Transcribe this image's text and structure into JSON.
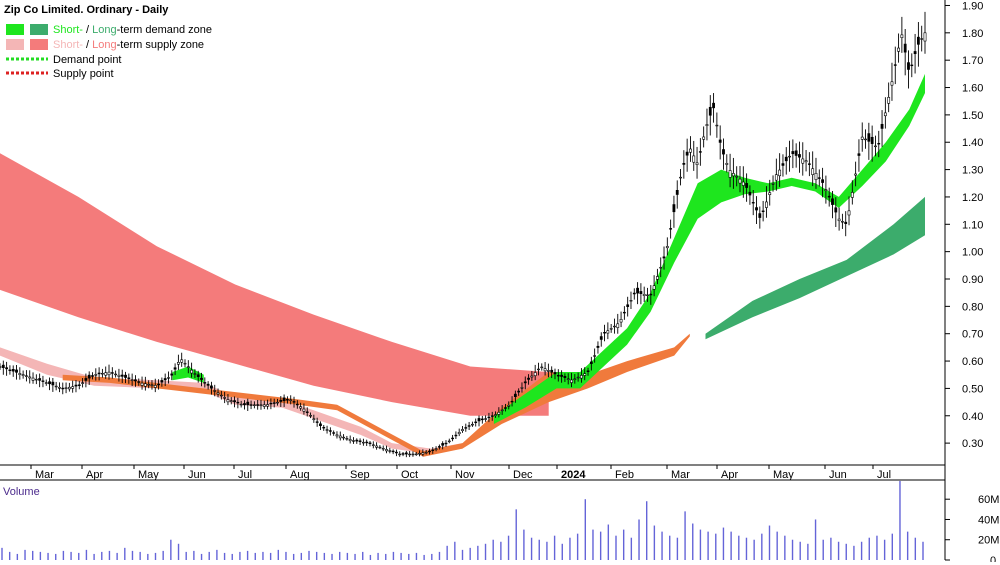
{
  "chart_data": {
    "type": "line",
    "title": "Zip Co Limited. Ordinary - Daily",
    "legend": {
      "placement": "top-left",
      "entries": [
        {
          "key": "demand-zone",
          "pre": "Short-",
          "mid": " / ",
          "post": "Long",
          "tail": "-term demand zone",
          "colors": [
            "#1ee61e",
            "#3cac6c"
          ]
        },
        {
          "key": "supply-zone",
          "pre": "Short-",
          "mid": " / ",
          "post": "Long",
          "tail": "-term supply zone",
          "colors": [
            "#f4b6b6",
            "#f47b7b"
          ]
        },
        {
          "key": "demand-point",
          "label": "Demand point",
          "color": "#22dd22"
        },
        {
          "key": "supply-point",
          "label": "Supply point",
          "color": "#dd2222"
        }
      ]
    },
    "x_labels": [
      "Mar",
      "Apr",
      "May",
      "Jun",
      "Jul",
      "Aug",
      "Sep",
      "Oct",
      "Nov",
      "Dec",
      "2024",
      "Feb",
      "Mar",
      "Apr",
      "May",
      "Jun",
      "Jul"
    ],
    "y_ticks": [
      "1.90",
      "1.80",
      "1.70",
      "1.60",
      "1.50",
      "1.40",
      "1.30",
      "1.20",
      "1.10",
      "1.00",
      "0.90",
      "0.80",
      "0.70",
      "0.60",
      "0.50",
      "0.40",
      "0.30"
    ],
    "ylim": [
      0.22,
      1.92
    ],
    "x_index_range": [
      0,
      118
    ],
    "price_points": [
      [
        0,
        0.58
      ],
      [
        3,
        0.55
      ],
      [
        6,
        0.52
      ],
      [
        8,
        0.5
      ],
      [
        10,
        0.51
      ],
      [
        12,
        0.55
      ],
      [
        14,
        0.56
      ],
      [
        16,
        0.54
      ],
      [
        18,
        0.52
      ],
      [
        20,
        0.51
      ],
      [
        22,
        0.55
      ],
      [
        23,
        0.61
      ],
      [
        25,
        0.55
      ],
      [
        27,
        0.5
      ],
      [
        29,
        0.46
      ],
      [
        31,
        0.44
      ],
      [
        34,
        0.44
      ],
      [
        37,
        0.46
      ],
      [
        39,
        0.42
      ],
      [
        41,
        0.36
      ],
      [
        43,
        0.33
      ],
      [
        45,
        0.31
      ],
      [
        47,
        0.3
      ],
      [
        49,
        0.28
      ],
      [
        51,
        0.26
      ],
      [
        53,
        0.26
      ],
      [
        55,
        0.27
      ],
      [
        57,
        0.3
      ],
      [
        59,
        0.35
      ],
      [
        61,
        0.38
      ],
      [
        63,
        0.4
      ],
      [
        65,
        0.44
      ],
      [
        67,
        0.52
      ],
      [
        69,
        0.58
      ],
      [
        71,
        0.55
      ],
      [
        73,
        0.53
      ],
      [
        75,
        0.56
      ],
      [
        77,
        0.7
      ],
      [
        79,
        0.74
      ],
      [
        81,
        0.85
      ],
      [
        83,
        0.84
      ],
      [
        85,
        1.0
      ],
      [
        87,
        1.3
      ],
      [
        88,
        1.38
      ],
      [
        89,
        1.32
      ],
      [
        90,
        1.45
      ],
      [
        91,
        1.53
      ],
      [
        92,
        1.38
      ],
      [
        93,
        1.3
      ],
      [
        95,
        1.25
      ],
      [
        97,
        1.12
      ],
      [
        99,
        1.28
      ],
      [
        101,
        1.36
      ],
      [
        103,
        1.33
      ],
      [
        105,
        1.25
      ],
      [
        107,
        1.12
      ],
      [
        108,
        1.1
      ],
      [
        110,
        1.42
      ],
      [
        112,
        1.38
      ],
      [
        114,
        1.65
      ],
      [
        115,
        1.8
      ],
      [
        116,
        1.65
      ],
      [
        117,
        1.75
      ],
      [
        118,
        1.8
      ]
    ],
    "zones": {
      "long_supply": {
        "color": "#f47b7b",
        "upper": [
          [
            0,
            1.36
          ],
          [
            10,
            1.2
          ],
          [
            20,
            1.02
          ],
          [
            30,
            0.88
          ],
          [
            40,
            0.77
          ],
          [
            50,
            0.67
          ],
          [
            60,
            0.58
          ],
          [
            70,
            0.56
          ]
        ],
        "lower": [
          [
            0,
            0.86
          ],
          [
            10,
            0.76
          ],
          [
            20,
            0.67
          ],
          [
            30,
            0.59
          ],
          [
            40,
            0.51
          ],
          [
            50,
            0.45
          ],
          [
            60,
            0.4
          ],
          [
            70,
            0.4
          ]
        ]
      },
      "short_supply": {
        "color": "#f4b6b6",
        "upper": [
          [
            0,
            0.65
          ],
          [
            6,
            0.59
          ],
          [
            12,
            0.54
          ],
          [
            20,
            0.53
          ],
          [
            26,
            0.52
          ],
          [
            30,
            0.47
          ],
          [
            36,
            0.46
          ],
          [
            40,
            0.42
          ],
          [
            46,
            0.36
          ],
          [
            50,
            0.3
          ],
          [
            55,
            0.28
          ],
          [
            59,
            0.3
          ]
        ],
        "lower": [
          [
            0,
            0.62
          ],
          [
            6,
            0.55
          ],
          [
            12,
            0.51
          ],
          [
            20,
            0.5
          ],
          [
            26,
            0.49
          ],
          [
            30,
            0.44
          ],
          [
            36,
            0.43
          ],
          [
            40,
            0.39
          ],
          [
            46,
            0.33
          ],
          [
            50,
            0.28
          ],
          [
            55,
            0.26
          ],
          [
            59,
            0.28
          ]
        ]
      },
      "short_demand_early": {
        "color": "#1ee61e",
        "upper": [
          [
            22,
            0.56
          ],
          [
            24,
            0.58
          ],
          [
            26,
            0.55
          ]
        ],
        "lower": [
          [
            22,
            0.53
          ],
          [
            24,
            0.54
          ],
          [
            26,
            0.52
          ]
        ]
      },
      "short_transition": {
        "color": "#f07a3c",
        "upper": [
          [
            8,
            0.55
          ],
          [
            14,
            0.54
          ],
          [
            38,
            0.46
          ],
          [
            43,
            0.44
          ],
          [
            54,
            0.27
          ],
          [
            59,
            0.3
          ],
          [
            64,
            0.43
          ],
          [
            70,
            0.56
          ],
          [
            75,
            0.55
          ],
          [
            80,
            0.6
          ],
          [
            86,
            0.65
          ],
          [
            88,
            0.7
          ]
        ],
        "lower": [
          [
            8,
            0.53
          ],
          [
            14,
            0.52
          ],
          [
            38,
            0.44
          ],
          [
            43,
            0.42
          ],
          [
            54,
            0.25
          ],
          [
            59,
            0.28
          ],
          [
            64,
            0.37
          ],
          [
            70,
            0.45
          ],
          [
            75,
            0.5
          ],
          [
            80,
            0.56
          ],
          [
            86,
            0.62
          ],
          [
            88,
            0.69
          ]
        ]
      },
      "short_demand_main": {
        "color": "#1ee61e",
        "upper": [
          [
            63,
            0.4
          ],
          [
            67,
            0.48
          ],
          [
            71,
            0.56
          ],
          [
            74,
            0.56
          ],
          [
            77,
            0.64
          ],
          [
            80,
            0.72
          ],
          [
            83,
            0.85
          ],
          [
            86,
            1.05
          ],
          [
            89,
            1.25
          ],
          [
            92,
            1.3
          ],
          [
            95,
            1.27
          ],
          [
            98,
            1.25
          ],
          [
            101,
            1.27
          ],
          [
            104,
            1.25
          ],
          [
            107,
            1.2
          ],
          [
            110,
            1.3
          ],
          [
            113,
            1.4
          ],
          [
            116,
            1.52
          ],
          [
            118,
            1.65
          ]
        ],
        "lower": [
          [
            63,
            0.37
          ],
          [
            67,
            0.43
          ],
          [
            71,
            0.5
          ],
          [
            74,
            0.5
          ],
          [
            77,
            0.58
          ],
          [
            80,
            0.66
          ],
          [
            83,
            0.78
          ],
          [
            86,
            0.96
          ],
          [
            89,
            1.12
          ],
          [
            92,
            1.18
          ],
          [
            95,
            1.21
          ],
          [
            98,
            1.22
          ],
          [
            101,
            1.24
          ],
          [
            104,
            1.22
          ],
          [
            107,
            1.16
          ],
          [
            110,
            1.24
          ],
          [
            113,
            1.33
          ],
          [
            116,
            1.46
          ],
          [
            118,
            1.58
          ]
        ]
      },
      "long_demand": {
        "color": "#3cac6c",
        "upper": [
          [
            90,
            0.7
          ],
          [
            96,
            0.82
          ],
          [
            102,
            0.9
          ],
          [
            108,
            0.97
          ],
          [
            114,
            1.1
          ],
          [
            118,
            1.2
          ]
        ],
        "lower": [
          [
            90,
            0.68
          ],
          [
            96,
            0.76
          ],
          [
            102,
            0.83
          ],
          [
            108,
            0.91
          ],
          [
            114,
            0.99
          ],
          [
            118,
            1.06
          ]
        ]
      }
    },
    "volume": {
      "label": "Volume",
      "ticks": [
        "60M",
        "40M",
        "20M",
        "0"
      ],
      "ylim": [
        0,
        75
      ],
      "unit": "M",
      "values": [
        12,
        8,
        6,
        10,
        9,
        8,
        7,
        6,
        9,
        8,
        7,
        10,
        6,
        8,
        9,
        7,
        12,
        9,
        8,
        6,
        7,
        9,
        20,
        16,
        8,
        9,
        6,
        8,
        10,
        7,
        6,
        8,
        9,
        7,
        8,
        7,
        10,
        8,
        6,
        7,
        9,
        8,
        7,
        6,
        8,
        7,
        6,
        8,
        5,
        7,
        6,
        8,
        7,
        6,
        7,
        5,
        6,
        8,
        14,
        18,
        10,
        12,
        14,
        16,
        20,
        18,
        24,
        50,
        30,
        22,
        20,
        18,
        24,
        16,
        22,
        26,
        60,
        30,
        28,
        35,
        24,
        30,
        22,
        40,
        58,
        34,
        28,
        24,
        22,
        48,
        36,
        30,
        28,
        26,
        32,
        28,
        24,
        22,
        20,
        26,
        34,
        28,
        24,
        20,
        18,
        16,
        40,
        20,
        22,
        18,
        16,
        14,
        18,
        22,
        24,
        20,
        26,
        78,
        28,
        22,
        18
      ]
    }
  }
}
